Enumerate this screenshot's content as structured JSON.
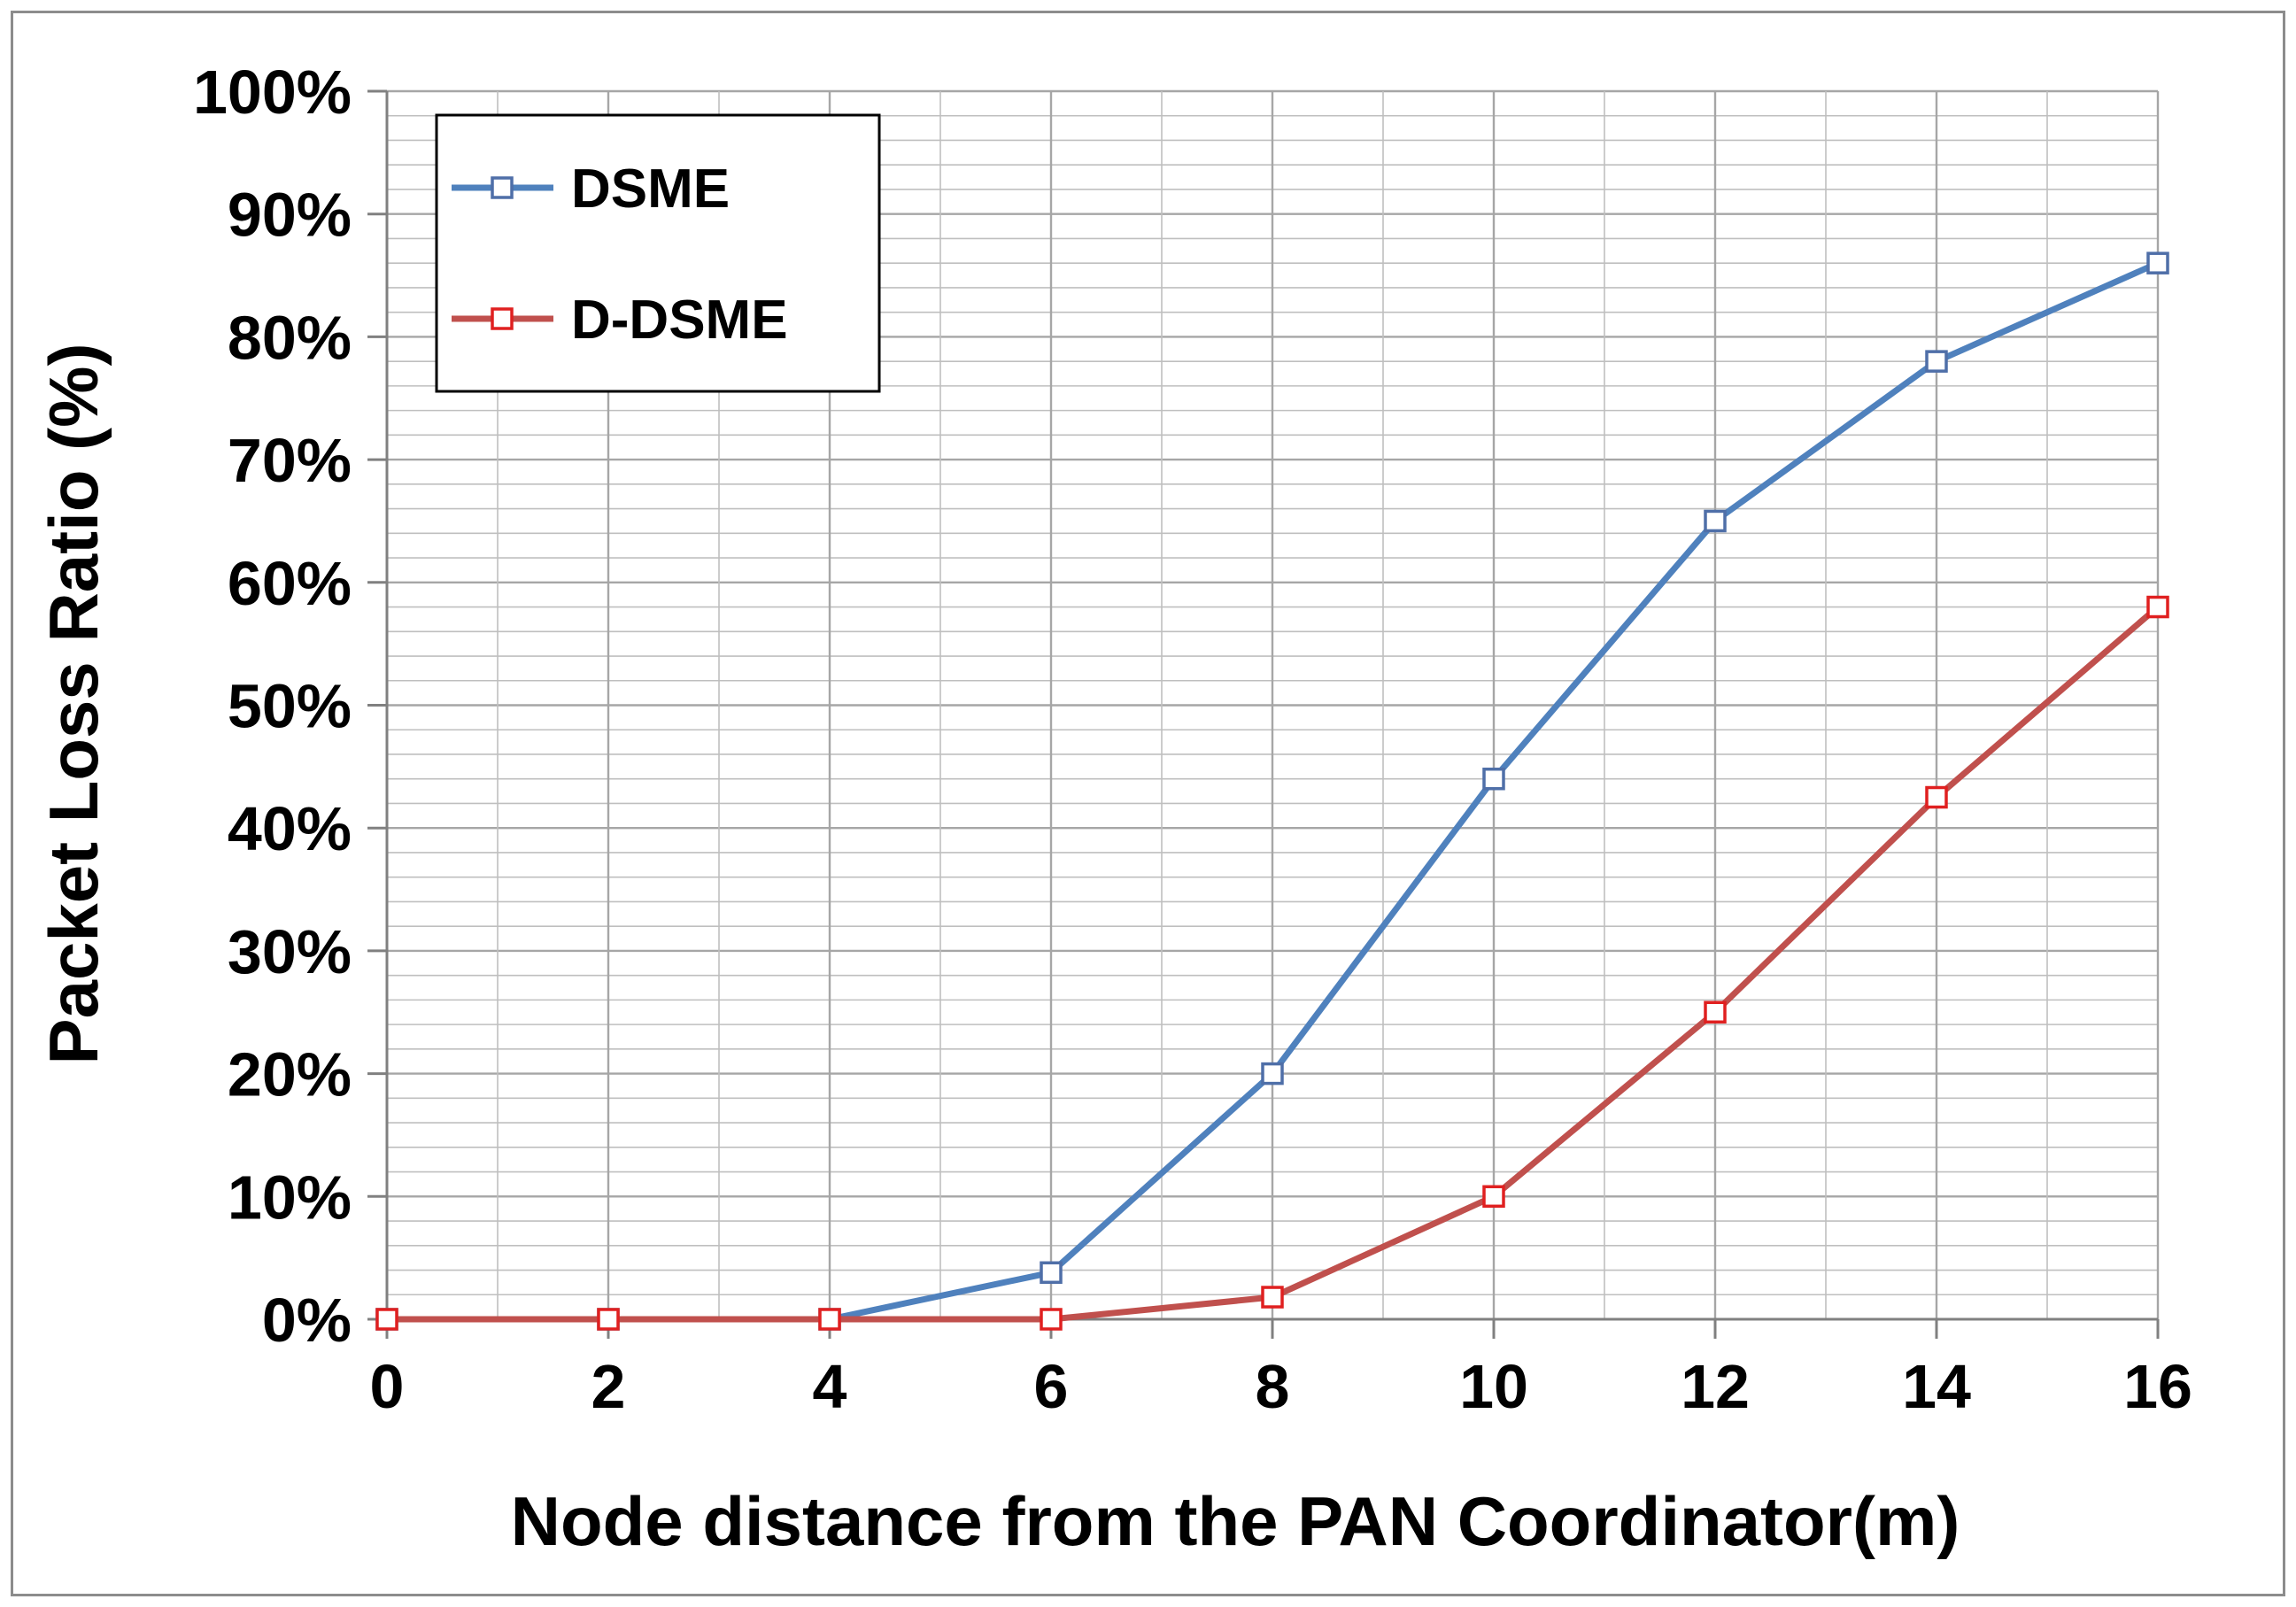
{
  "chart_data": {
    "type": "line",
    "title": "",
    "xlabel": "Node distance from the PAN Coordinator(m)",
    "ylabel": "Packet Loss Ratio (%)",
    "x": [
      0,
      2,
      4,
      6,
      8,
      10,
      12,
      14,
      16
    ],
    "x_ticks": [
      "0",
      "2",
      "4",
      "6",
      "8",
      "10",
      "12",
      "14",
      "16"
    ],
    "y_ticks": [
      "0%",
      "10%",
      "20%",
      "30%",
      "40%",
      "50%",
      "60%",
      "70%",
      "80%",
      "90%",
      "100%"
    ],
    "xlim": [
      0,
      16
    ],
    "ylim": [
      0,
      100
    ],
    "grid": true,
    "legend_position": "top-left",
    "series": [
      {
        "name": "DSME",
        "color": "#4f81bd",
        "marker": "open-square",
        "values": [
          0,
          0,
          0,
          3.8,
          20,
          44,
          65,
          78,
          86
        ]
      },
      {
        "name": "D-DSME",
        "color": "#c0504d",
        "marker": "open-square",
        "values": [
          0,
          0,
          0,
          0,
          1.8,
          10,
          25,
          42.5,
          58
        ]
      }
    ]
  }
}
